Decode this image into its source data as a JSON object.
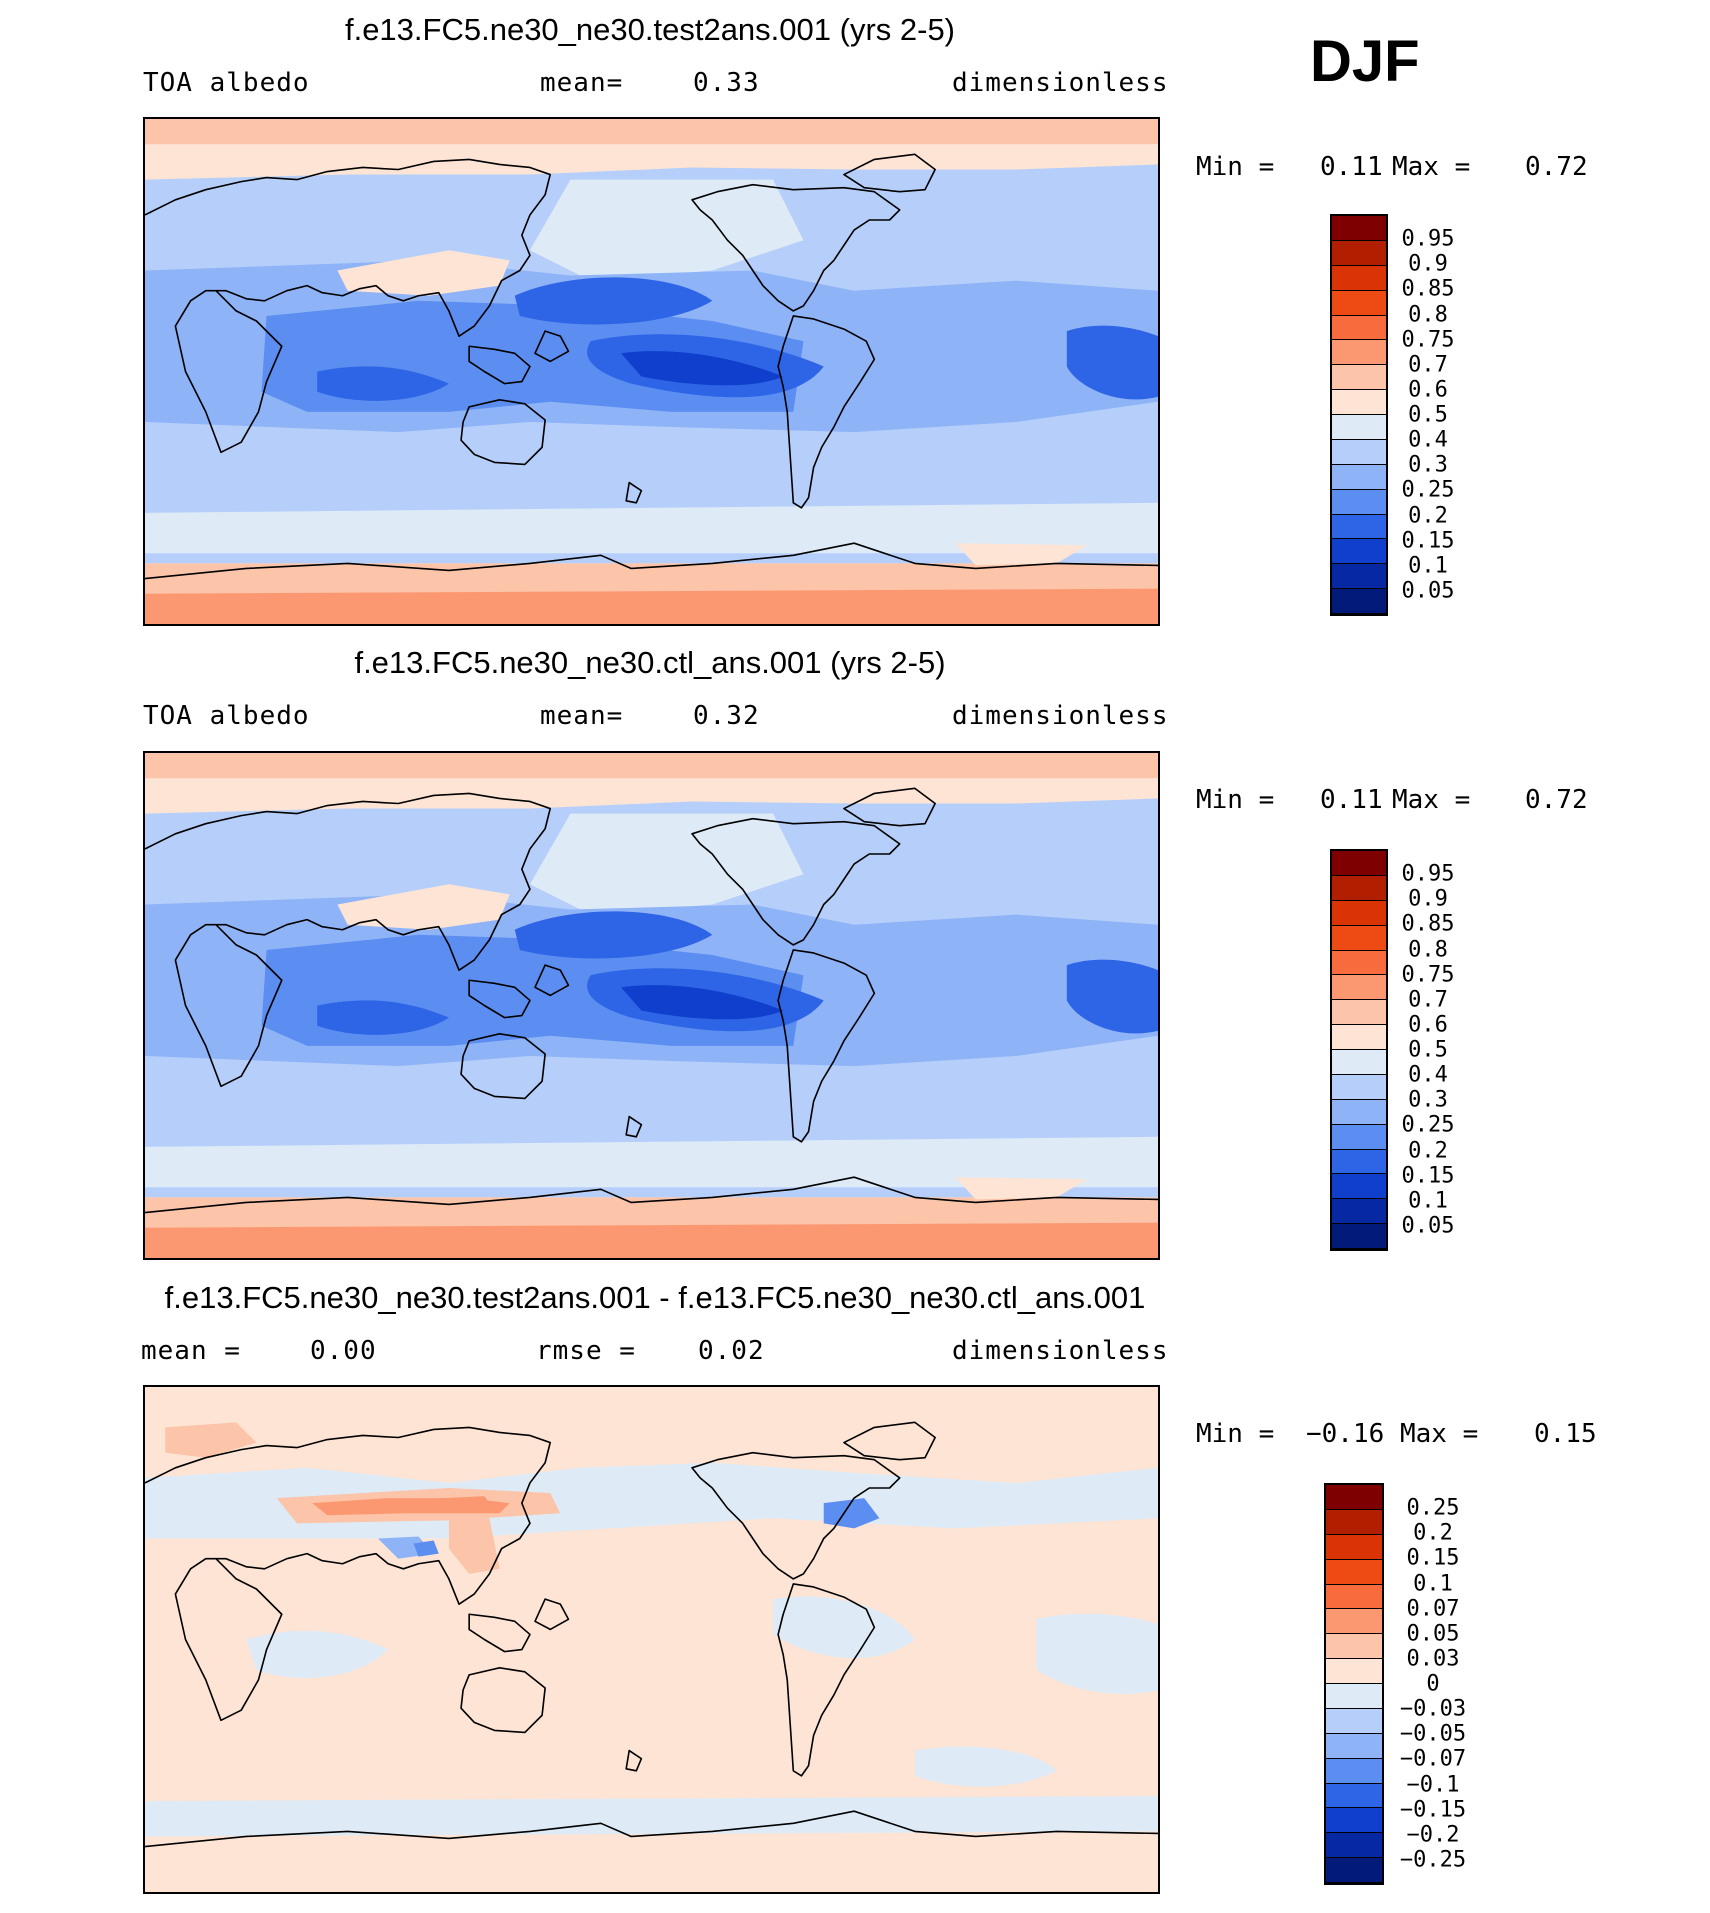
{
  "season": "DJF",
  "panels": [
    {
      "title": "f.e13.FC5.ne30_ne30.test2ans.001 (yrs 2-5)",
      "left_label": "TOA albedo",
      "center_label": "mean=",
      "center_value": "0.33",
      "right_label": "dimensionless",
      "min_label": "Min =",
      "min_value": "0.11",
      "max_label": "Max =",
      "max_value": "0.72",
      "colorbar": "abs"
    },
    {
      "title": "f.e13.FC5.ne30_ne30.ctl_ans.001 (yrs 2-5)",
      "left_label": "TOA albedo",
      "center_label": "mean=",
      "center_value": "0.32",
      "right_label": "dimensionless",
      "min_label": "Min =",
      "min_value": "0.11",
      "max_label": "Max =",
      "max_value": "0.72",
      "colorbar": "abs"
    },
    {
      "title": "f.e13.FC5.ne30_ne30.test2ans.001 - f.e13.FC5.ne30_ne30.ctl_ans.001",
      "left_label": "mean =",
      "left_value": "0.00",
      "center_label": "rmse =",
      "center_value": "0.02",
      "right_label": "dimensionless",
      "min_label": "Min =",
      "min_value": "−0.16",
      "max_label": "Max =",
      "max_value": "0.15",
      "colorbar": "diff"
    }
  ],
  "colorbars": {
    "abs": {
      "labels": [
        "0.95",
        "0.9",
        "0.85",
        "0.8",
        "0.75",
        "0.7",
        "0.6",
        "0.5",
        "0.4",
        "0.3",
        "0.25",
        "0.2",
        "0.15",
        "0.1",
        "0.05"
      ],
      "colors": [
        "#7f0000",
        "#b21e00",
        "#d93306",
        "#ed4a14",
        "#f86b3c",
        "#fb9872",
        "#fcc4a8",
        "#fde4d4",
        "#deebf7",
        "#b6cffa",
        "#8fb3f7",
        "#5b8ef0",
        "#2e64e6",
        "#0f3fcc",
        "#0629a3",
        "#021a7a"
      ]
    },
    "diff": {
      "labels": [
        "0.25",
        "0.2",
        "0.15",
        "0.1",
        "0.07",
        "0.05",
        "0.03",
        "0",
        "−0.03",
        "−0.05",
        "−0.07",
        "−0.1",
        "−0.15",
        "−0.2",
        "−0.25"
      ],
      "colors": [
        "#7f0000",
        "#b21e00",
        "#d93306",
        "#ed4a14",
        "#f86b3c",
        "#fb9872",
        "#fcc4a8",
        "#fde4d4",
        "#deebf7",
        "#b6cffa",
        "#8fb3f7",
        "#5b8ef0",
        "#2e64e6",
        "#0f3fcc",
        "#0629a3",
        "#021a7a"
      ]
    }
  }
}
